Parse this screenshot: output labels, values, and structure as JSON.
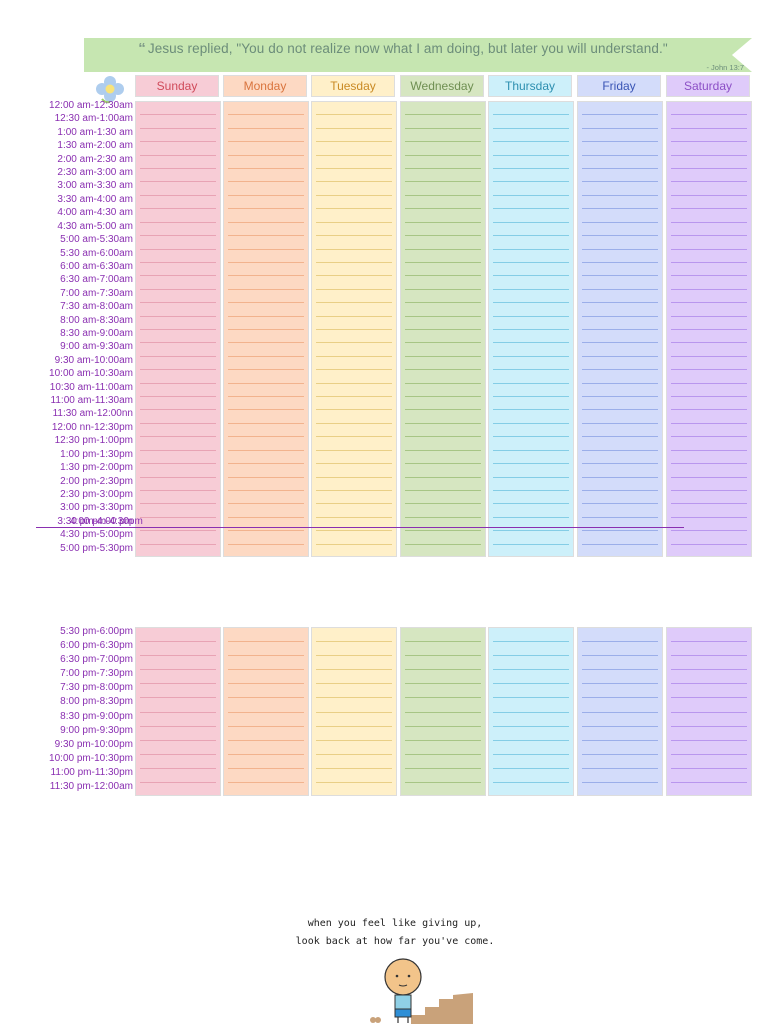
{
  "quote": {
    "text": "Jesus replied, \"You do not realize now what I am doing, but later you will understand.\"",
    "citation": "- John 13:7"
  },
  "days": [
    {
      "label": "Sunday",
      "text_color": "#d04a5a",
      "bg": "#f7ccd6",
      "line": "#e8a3b4"
    },
    {
      "label": "Monday",
      "text_color": "#d9743d",
      "bg": "#fdd9c3",
      "line": "#f2b38e"
    },
    {
      "label": "Tuesday",
      "text_color": "#c98a24",
      "bg": "#fff0c9",
      "line": "#e9cf86"
    },
    {
      "label": "Wednesday",
      "text_color": "#6f8f52",
      "bg": "#d6e6c1",
      "line": "#a7c585"
    },
    {
      "label": "Thursday",
      "text_color": "#2d8fb0",
      "bg": "#cdf0fa",
      "line": "#84cde6"
    },
    {
      "label": "Friday",
      "text_color": "#3a55b5",
      "bg": "#d3dcfa",
      "line": "#9baee9"
    },
    {
      "label": "Saturday",
      "text_color": "#8c4fc6",
      "bg": "#dfcbfa",
      "line": "#b996ee"
    }
  ],
  "upper_times": [
    "12:00 am-12:30am",
    "12:30 am-1:00am",
    "1:00 am-1:30 am",
    "1:30 am-2:00 am",
    "2:00 am-2:30 am",
    "2:30 am-3:00 am",
    "3:00 am-3:30 am",
    "3:30 am-4:00 am",
    "4:00 am-4:30 am",
    "4:30 am-5:00 am",
    "5:00 am-5:30am",
    "5:30 am-6:00am",
    "6:00 am-6:30am",
    "6:30 am-7:00am",
    "7:00 am-7:30am",
    "7:30 am-8:00am",
    "8:00 am-8:30am",
    "8:30 am-9:00am",
    "9:00 am-9:30am",
    "9:30 am-10:00am",
    "10:00 am-10:30am",
    "10:30 am-11:00am",
    "11:00 am-11:30am",
    "11:30 am-12:00nn",
    "12:00 nn-12:30pm",
    "12:30 pm-1:00pm",
    "1:00 pm-1:30pm",
    "1:30 pm-2:00pm",
    "2:00 pm-2:30pm",
    "2:30 pm-3:00pm",
    "3:00 pm-3:30pm",
    "3:30 pm-4:00 pm",
    "4:30 pm-5:00pm",
    "5:00 pm-5:30pm"
  ],
  "overlap_label": "4:00 pm-4:30pm",
  "lower_times": [
    "5:30 pm-6:00pm",
    "6:00 pm-6:30pm",
    "6:30 pm-7:00pm",
    "7:00 pm-7:30pm",
    "7:30 pm-8:00pm",
    "8:00 pm-8:30pm",
    "8:30 pm-9:00pm",
    "9:00 pm-9:30pm",
    "9:30 pm-10:00pm",
    "10:00 pm-10:30pm",
    "11:00 pm-11:30pm",
    "11:30 pm-12:00am"
  ],
  "message": {
    "line1": "when you feel like giving up,",
    "line2": "look back at how far you've come."
  },
  "colors": {
    "banner": "#c6e6b1",
    "time_text": "#8a2fb1"
  },
  "icons": [
    "flower-icon",
    "cartoon-figure-icon"
  ]
}
